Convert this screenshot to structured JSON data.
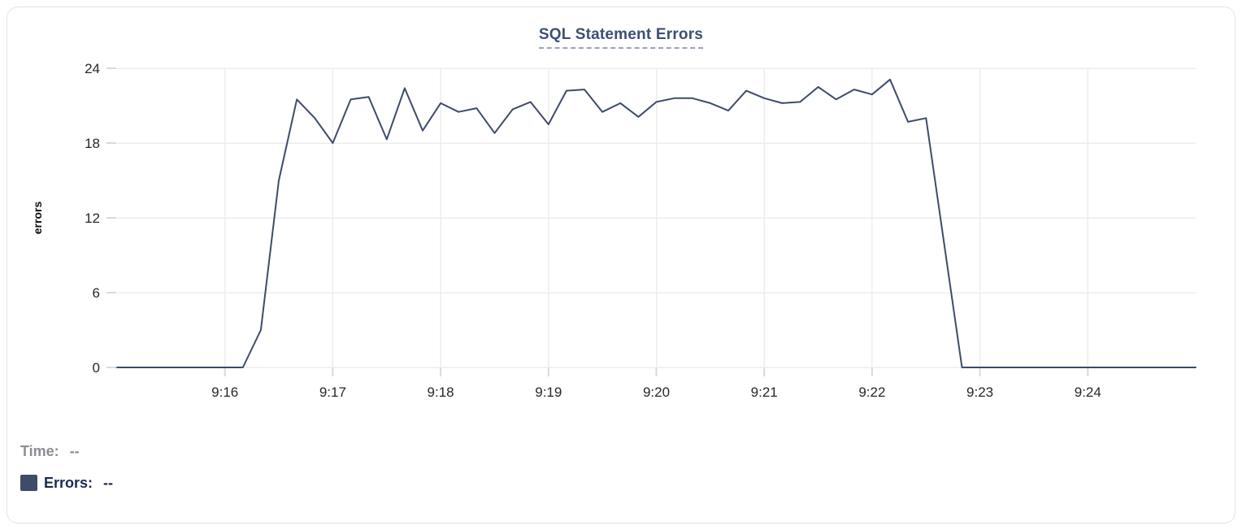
{
  "title": {
    "text": "SQL Statement Errors"
  },
  "legend": {
    "time": {
      "label": "Time:",
      "value": "--"
    },
    "errors": {
      "label": "Errors:",
      "value": "--"
    }
  },
  "colors": {
    "line": "#3e4c68",
    "grid": "#ededf0",
    "tick": "#d9d9de",
    "axis_text": "#27272b",
    "ylabel_text": "#0c0c0e",
    "title": "#3d5070",
    "title_underline": "#9aa4bd",
    "time_text": "#8d8e93",
    "errors_text": "#1c2a50",
    "swatch": "#3e4c68",
    "card_border": "#e4e4e9",
    "background": "#ffffff"
  },
  "chart_data": {
    "type": "line",
    "title": "SQL Statement Errors",
    "xlabel": "",
    "ylabel": "errors",
    "ylim": [
      0,
      24
    ],
    "yticks": [
      0,
      6,
      12,
      18,
      24
    ],
    "x_start": "9:15:00",
    "x_end": "9:25:00",
    "x_step_seconds": 10,
    "x_total_seconds": 600,
    "xtick_seconds": [
      60,
      120,
      180,
      240,
      300,
      360,
      420,
      480,
      540
    ],
    "xtick_labels": [
      "9:16",
      "9:17",
      "9:18",
      "9:19",
      "9:20",
      "9:21",
      "9:22",
      "9:23",
      "9:24"
    ],
    "grid": true,
    "legend_position": "bottom-left",
    "series": [
      {
        "name": "Errors",
        "values": [
          0,
          0,
          0,
          0,
          0,
          0,
          0,
          0,
          3,
          15,
          21.5,
          20,
          18,
          21.5,
          21.7,
          18.3,
          22.4,
          19,
          21.2,
          20.5,
          20.8,
          18.8,
          20.7,
          21.3,
          19.5,
          22.2,
          22.3,
          20.5,
          21.2,
          20.1,
          21.3,
          21.6,
          21.6,
          21.2,
          20.6,
          22.2,
          21.6,
          21.2,
          21.3,
          22.5,
          21.5,
          22.3,
          21.9,
          23.1,
          19.7,
          20,
          10,
          0,
          0,
          0,
          0,
          0,
          0,
          0,
          0,
          0,
          0,
          0,
          0,
          0,
          0
        ]
      }
    ]
  }
}
